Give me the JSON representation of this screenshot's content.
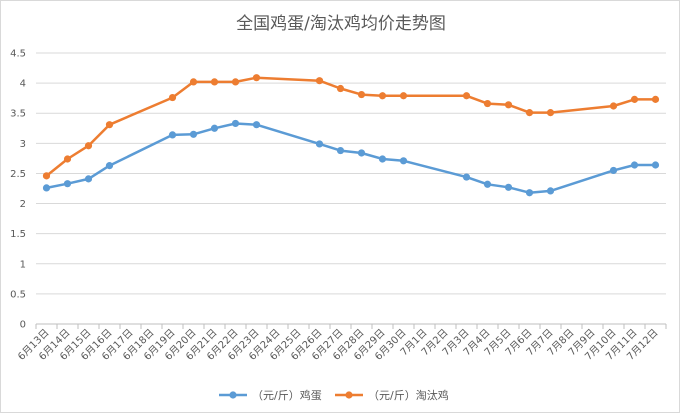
{
  "chart_data": {
    "type": "line",
    "title": "全国鸡蛋/淘汰鸡均价走势图",
    "xlabel": "",
    "ylabel": "",
    "ylim": [
      0,
      4.5
    ],
    "yticks": [
      "0",
      "0.5",
      "1",
      "1.5",
      "2",
      "2.5",
      "3",
      "3.5",
      "4",
      "4.5"
    ],
    "grid": "horizontal",
    "legend_position": "bottom",
    "categories": [
      "6月13日",
      "6月14日",
      "6月15日",
      "6月16日",
      "6月17日",
      "6月18日",
      "6月19日",
      "6月20日",
      "6月21日",
      "6月22日",
      "6月23日",
      "6月24日",
      "6月25日",
      "6月26日",
      "6月27日",
      "6月28日",
      "6月29日",
      "6月30日",
      "7月1日",
      "7月2日",
      "7月3日",
      "7月4日",
      "7月5日",
      "7月6日",
      "7月7日",
      "7月8日",
      "7月9日",
      "7月10日",
      "7月11日",
      "7月12日"
    ],
    "series": [
      {
        "name": "（元/斤）鸡蛋",
        "color": "#5b9bd5",
        "values": [
          2.26,
          2.33,
          2.41,
          2.63,
          null,
          null,
          3.14,
          3.15,
          3.25,
          3.33,
          3.31,
          null,
          null,
          2.99,
          2.88,
          2.84,
          2.74,
          2.71,
          null,
          null,
          2.44,
          2.32,
          2.27,
          2.18,
          2.21,
          null,
          null,
          2.55,
          2.64,
          2.64
        ]
      },
      {
        "name": "（元/斤）淘汰鸡",
        "color": "#ed7d31",
        "values": [
          2.46,
          2.74,
          2.96,
          3.31,
          null,
          null,
          3.76,
          4.02,
          4.02,
          4.02,
          4.09,
          null,
          null,
          4.04,
          3.91,
          3.81,
          3.79,
          3.79,
          null,
          null,
          3.79,
          3.66,
          3.64,
          3.51,
          3.51,
          null,
          null,
          3.62,
          3.73,
          3.73
        ]
      }
    ]
  }
}
